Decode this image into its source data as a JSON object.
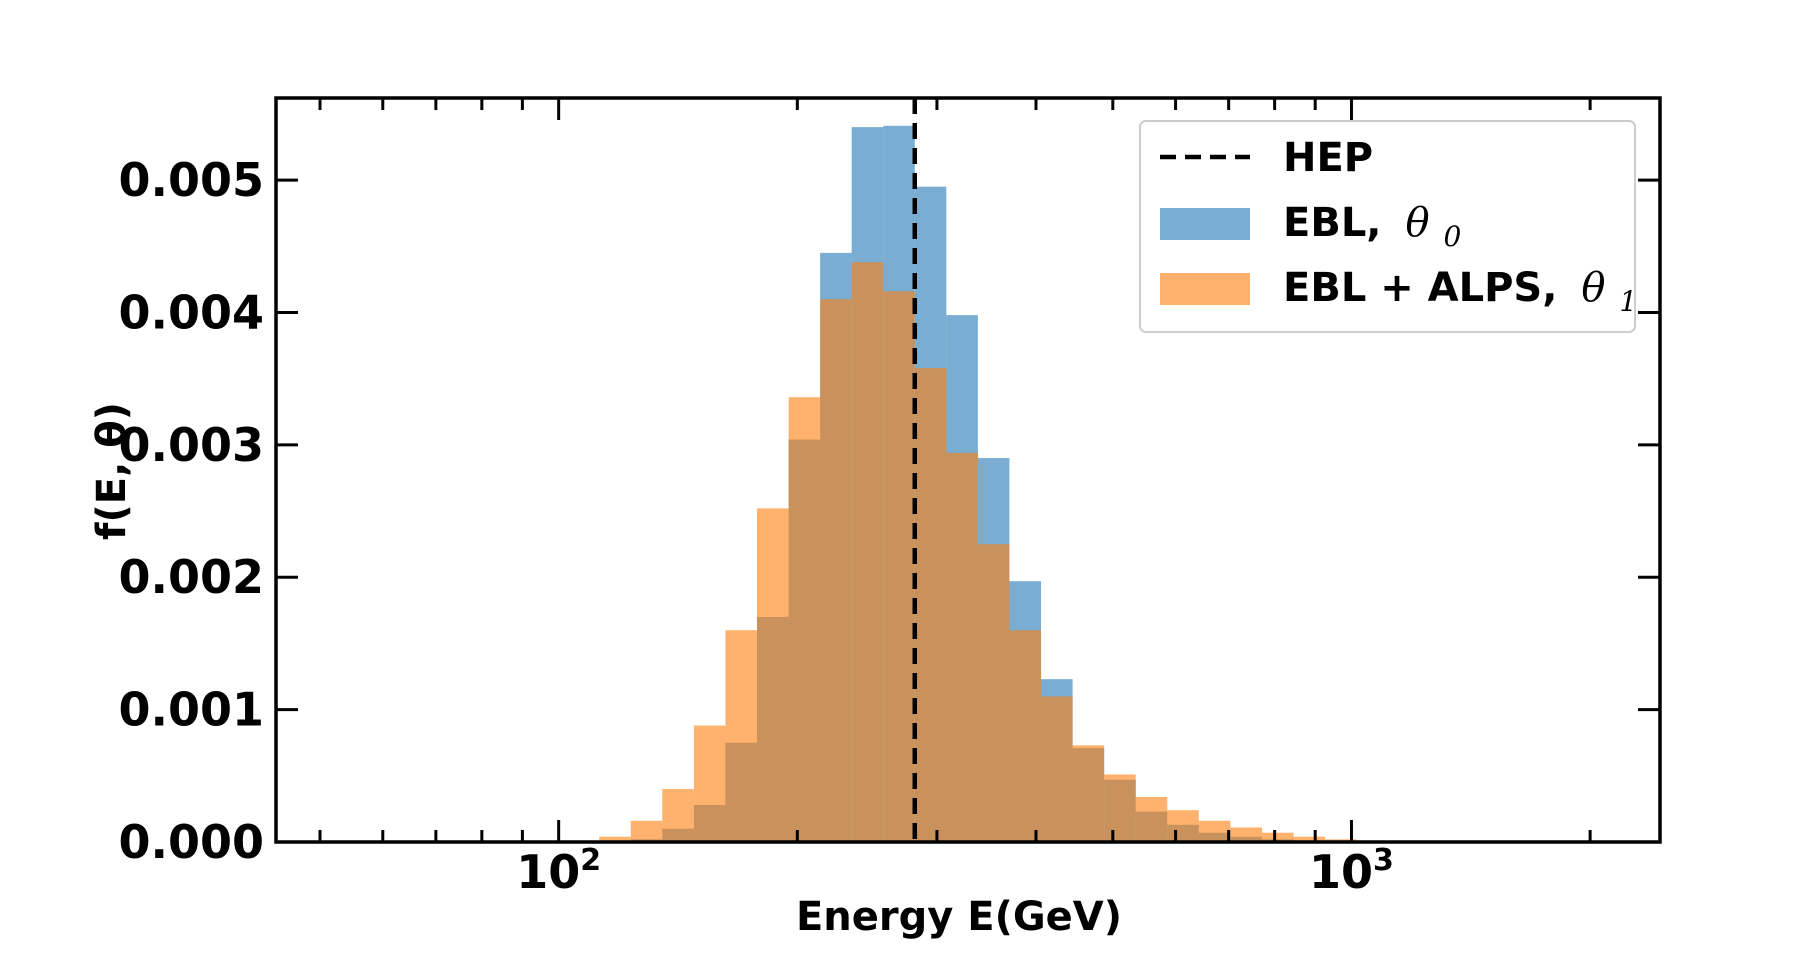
{
  "chart_data": {
    "type": "histogram",
    "title": "",
    "xlabel": "Energy E(GeV)",
    "ylabel": "f(E, θ)",
    "xscale": "log",
    "xlim": [
      44,
      2450
    ],
    "ylim": [
      0,
      0.00562
    ],
    "yticks": [
      "0.000",
      "0.001",
      "0.002",
      "0.003",
      "0.004",
      "0.005"
    ],
    "xticks": [
      {
        "value": 100,
        "base": "10",
        "exp": "2"
      },
      {
        "value": 1000,
        "base": "10",
        "exp": "3"
      }
    ],
    "bin_edges": [
      112.5,
      123.3,
      135.1,
      148.1,
      162.3,
      177.9,
      195.0,
      213.7,
      234.2,
      256.7,
      281.3,
      308.3,
      337.9,
      370.3,
      405.9,
      444.9,
      487.6,
      534.4,
      585.7,
      641.9,
      703.5,
      771.1,
      845.1,
      926.2,
      1015.1,
      1112.6,
      1219.4,
      1336.5
    ],
    "reference_line": {
      "name": "HEP",
      "x": 281.3,
      "style": "dashed",
      "color": "#000000"
    },
    "series": [
      {
        "name": "EBL, θ0",
        "label_text": "EBL,",
        "label_greek": "θ",
        "label_sub": "0",
        "color": "#1f77b4",
        "opacity": 0.6,
        "values": [
          0.0,
          2e-05,
          0.0001,
          0.00028,
          0.00075,
          0.0017,
          0.00304,
          0.00445,
          0.0054,
          0.00541,
          0.00495,
          0.00398,
          0.0029,
          0.00197,
          0.00123,
          0.00071,
          0.00047,
          0.00023,
          0.00013,
          7e-05,
          4e-05,
          2e-05,
          1e-05,
          5e-06,
          0.0,
          0.0,
          0.0
        ]
      },
      {
        "name": "EBL + ALPS, θ1",
        "label_text": "EBL + ALPS,",
        "label_greek": "θ",
        "label_sub": "1",
        "color": "#ff7f0e",
        "opacity": 0.6,
        "values": [
          4e-05,
          0.00016,
          0.0004,
          0.00088,
          0.0016,
          0.00252,
          0.00336,
          0.0041,
          0.00438,
          0.00416,
          0.00358,
          0.00294,
          0.00225,
          0.0016,
          0.0011,
          0.00073,
          0.00051,
          0.00034,
          0.00024,
          0.00016,
          0.00011,
          7e-05,
          4e-05,
          2e-05,
          1e-05,
          5e-06,
          0.0
        ]
      }
    ],
    "legend": {
      "position": "top-right"
    }
  }
}
